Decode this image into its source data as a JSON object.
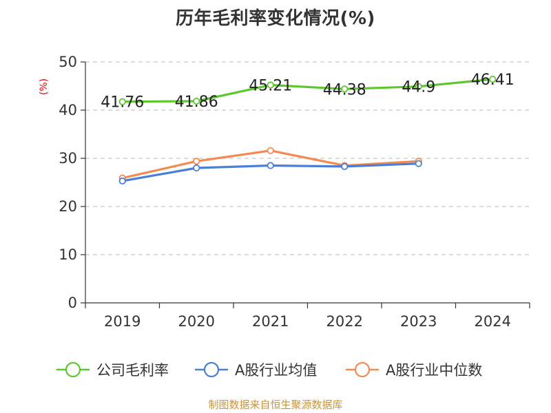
{
  "title": "历年毛利率变化情况(%)",
  "source_note": "制图数据来自恒生聚源数据库",
  "colors": {
    "company": "#5cc82d",
    "industry_avg": "#4a7fd6",
    "industry_median": "#f28a52",
    "grid": "#c8c8c8",
    "axis": "#333333",
    "unit": "#e00000",
    "source": "#c8943a"
  },
  "chart_data": {
    "type": "line",
    "title": "历年毛利率变化情况(%)",
    "xlabel": "",
    "ylabel": "(%)",
    "ylim": [
      0,
      50
    ],
    "yticks": [
      0,
      10,
      20,
      30,
      40,
      50
    ],
    "categories": [
      "2019",
      "2020",
      "2021",
      "2022",
      "2023",
      "2024"
    ],
    "grid": true,
    "legend_position": "bottom",
    "series": [
      {
        "name": "公司毛利率",
        "color": "#5cc82d",
        "values": [
          41.76,
          41.86,
          45.21,
          44.38,
          44.9,
          46.41
        ],
        "labels": [
          "41.76",
          "41.86",
          "45.21",
          "44.38",
          "44.9",
          "46.41"
        ]
      },
      {
        "name": "A股行业均值",
        "color": "#4a7fd6",
        "values": [
          25.3,
          28.0,
          28.5,
          28.3,
          28.9,
          null
        ]
      },
      {
        "name": "A股行业中位数",
        "color": "#f28a52",
        "values": [
          25.9,
          29.4,
          31.6,
          28.5,
          29.4,
          null
        ]
      }
    ]
  }
}
